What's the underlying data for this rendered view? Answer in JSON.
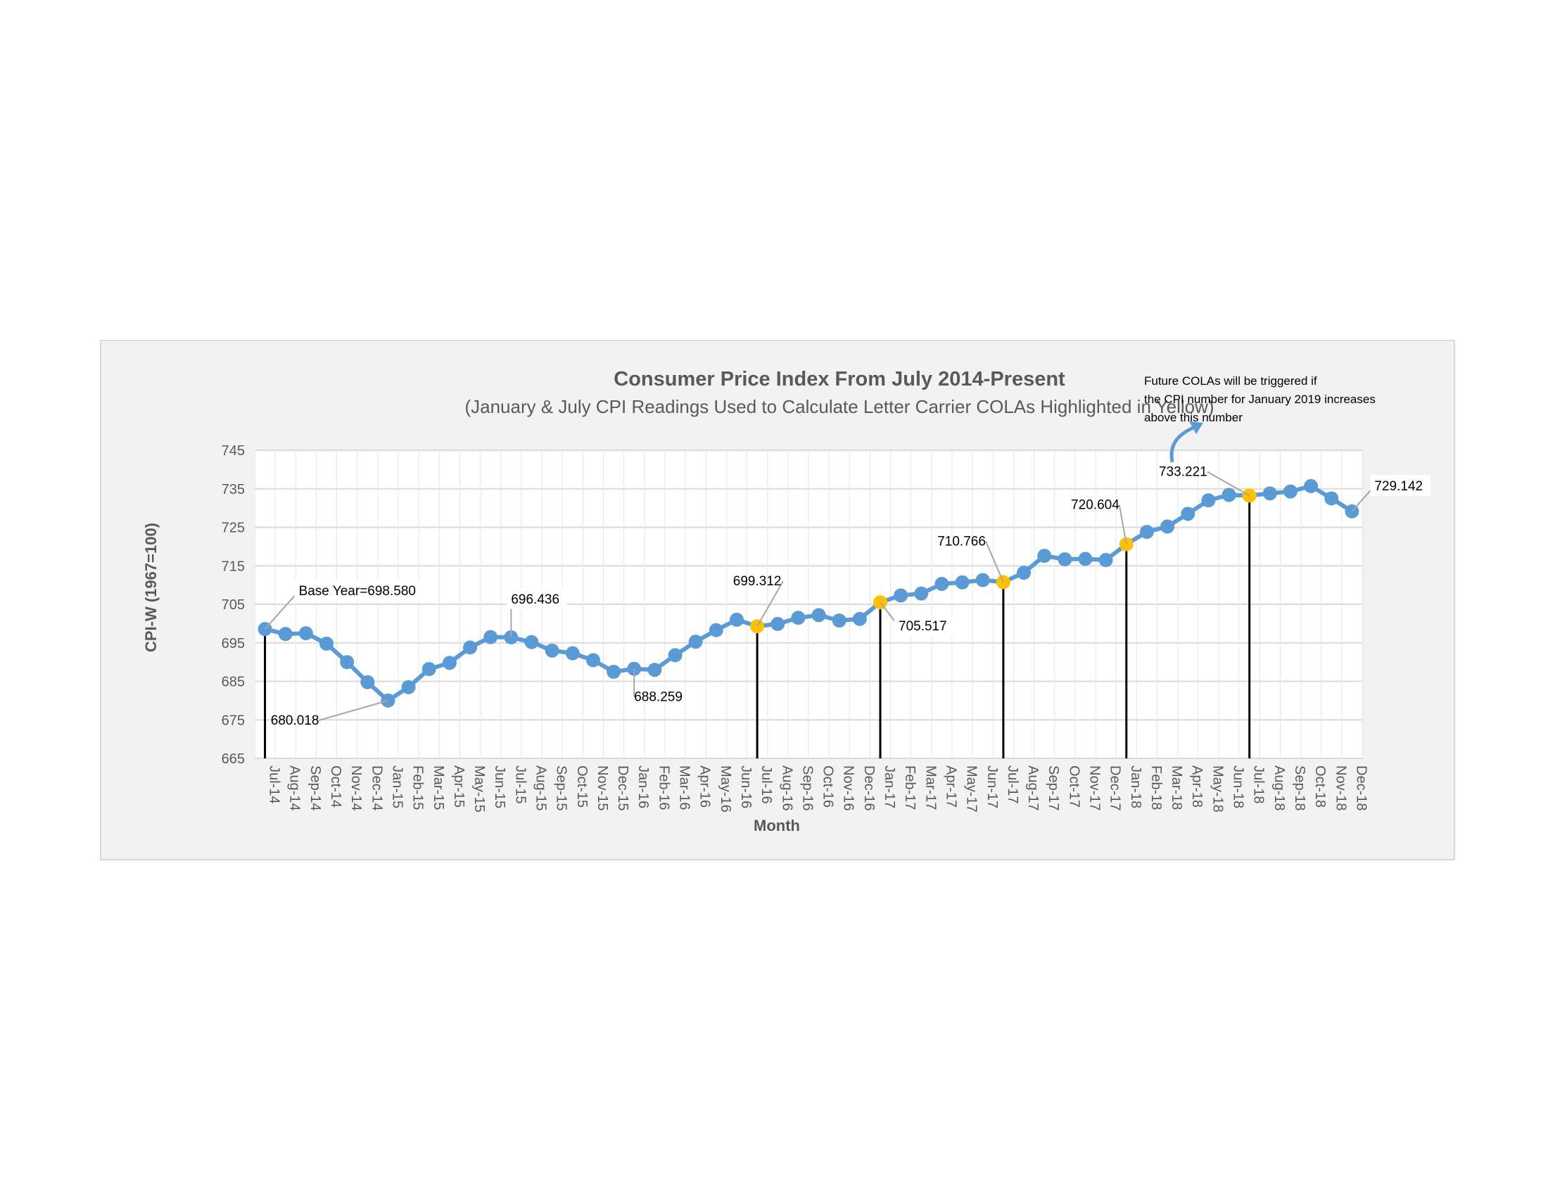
{
  "chart_data": {
    "type": "line",
    "title": "Consumer Price Index From July 2014-Present",
    "subtitle": "(January & July CPI Readings Used to Calculate Letter Carrier COLAs Highlighted in Yellow)",
    "xlabel": "Month",
    "ylabel": "CPI-W (1967=100)",
    "ylim": [
      665,
      745
    ],
    "yticks": [
      665,
      675,
      685,
      695,
      705,
      715,
      725,
      735,
      745
    ],
    "grid": true,
    "colors": {
      "line": "#5b9bd5",
      "highlight": "#ffc000",
      "droplines": "#000000"
    },
    "categories": [
      "Jul-14",
      "Aug-14",
      "Sep-14",
      "Oct-14",
      "Nov-14",
      "Dec-14",
      "Jan-15",
      "Feb-15",
      "Mar-15",
      "Apr-15",
      "May-15",
      "Jun-15",
      "Jul-15",
      "Aug-15",
      "Sep-15",
      "Oct-15",
      "Nov-15",
      "Dec-15",
      "Jan-16",
      "Feb-16",
      "Mar-16",
      "Apr-16",
      "May-16",
      "Jun-16",
      "Jul-16",
      "Aug-16",
      "Sep-16",
      "Oct-16",
      "Nov-16",
      "Dec-16",
      "Jan-17",
      "Feb-17",
      "Mar-17",
      "Apr-17",
      "May-17",
      "Jun-17",
      "Jul-17",
      "Aug-17",
      "Sep-17",
      "Oct-17",
      "Nov-17",
      "Dec-17",
      "Jan-18",
      "Feb-18",
      "Mar-18",
      "Apr-18",
      "May-18",
      "Jun-18",
      "Jul-18",
      "Aug-18",
      "Sep-18",
      "Oct-18",
      "Nov-18",
      "Dec-18"
    ],
    "values": [
      698.58,
      697.3,
      697.5,
      694.8,
      690.0,
      684.8,
      680.018,
      683.5,
      688.2,
      689.8,
      693.8,
      696.5,
      696.436,
      695.2,
      693.0,
      692.3,
      690.5,
      687.5,
      688.259,
      688.0,
      691.8,
      695.3,
      698.3,
      701.0,
      699.312,
      699.9,
      701.5,
      702.2,
      700.8,
      701.2,
      705.517,
      707.3,
      707.8,
      710.3,
      710.7,
      711.3,
      710.766,
      713.2,
      717.6,
      716.7,
      716.8,
      716.5,
      720.604,
      723.8,
      725.2,
      728.5,
      732.0,
      733.4,
      733.221,
      733.8,
      734.3,
      735.7,
      732.5,
      729.142
    ],
    "highlighted_categories": [
      "Jul-16",
      "Jan-17",
      "Jul-17",
      "Jan-18",
      "Jul-18"
    ],
    "droplines_at": [
      "Jul-14",
      "Jul-16",
      "Jan-17",
      "Jul-17",
      "Jan-18",
      "Jul-18"
    ],
    "annotations": [
      {
        "category": "Jul-14",
        "text": "Base Year=698.580"
      },
      {
        "category": "Jan-15",
        "text": "680.018"
      },
      {
        "category": "Jul-15",
        "text": "696.436"
      },
      {
        "category": "Jan-16",
        "text": "688.259"
      },
      {
        "category": "Jul-16",
        "text": "699.312"
      },
      {
        "category": "Jan-17",
        "text": "705.517"
      },
      {
        "category": "Jul-17",
        "text": "710.766"
      },
      {
        "category": "Jan-18",
        "text": "720.604"
      },
      {
        "category": "Jul-18",
        "text": "733.221"
      },
      {
        "category": "Dec-18",
        "text": "729.142"
      }
    ],
    "note": [
      "Future COLAs will be triggered if",
      "the CPI number for January 2019 increases",
      "above this number"
    ]
  }
}
